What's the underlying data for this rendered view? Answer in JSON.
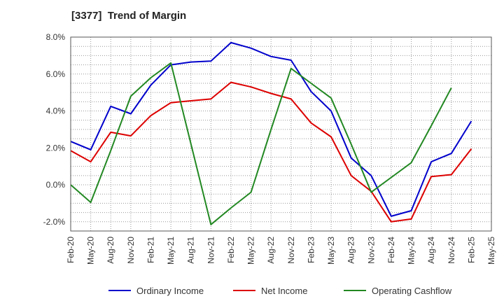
{
  "chart_data": {
    "type": "line",
    "title": "[3377]  Trend of Margin",
    "x": [
      "Feb-20",
      "May-20",
      "Aug-20",
      "Nov-20",
      "Feb-21",
      "May-21",
      "Aug-21",
      "Nov-21",
      "Feb-22",
      "May-22",
      "Aug-22",
      "Nov-22",
      "Feb-23",
      "May-23",
      "Aug-23",
      "Nov-23",
      "Feb-24",
      "May-24",
      "Aug-24",
      "Nov-24",
      "Feb-25",
      "May-25"
    ],
    "ylim": [
      -2.5,
      8.0
    ],
    "yticks": [
      -2.0,
      0.0,
      2.0,
      4.0,
      6.0,
      8.0
    ],
    "ytick_labels": [
      "-2.0%",
      "0.0%",
      "2.0%",
      "4.0%",
      "6.0%",
      "8.0%"
    ],
    "grid": true,
    "legend_position": "bottom",
    "series": [
      {
        "name": "Ordinary Income",
        "color": "#0000cc",
        "values": [
          2.35,
          1.9,
          4.25,
          3.85,
          5.4,
          6.5,
          6.65,
          6.7,
          7.7,
          7.4,
          6.95,
          6.75,
          5.05,
          4.0,
          1.45,
          0.5,
          -1.7,
          -1.4,
          1.25,
          1.7,
          3.45,
          null
        ]
      },
      {
        "name": "Net Income",
        "color": "#dd0000",
        "values": [
          1.85,
          1.25,
          2.85,
          2.65,
          3.75,
          4.45,
          4.55,
          4.65,
          5.55,
          5.3,
          4.95,
          4.65,
          3.35,
          2.6,
          0.5,
          -0.35,
          -2.0,
          -1.85,
          0.45,
          0.55,
          1.95,
          null
        ]
      },
      {
        "name": "Operating Cashflow",
        "color": "#228822",
        "values": [
          0.0,
          -0.95,
          1.85,
          4.8,
          5.8,
          6.6,
          null,
          -2.15,
          -1.25,
          -0.4,
          3.0,
          6.3,
          5.5,
          4.7,
          2.2,
          -0.4,
          0.4,
          1.2,
          3.2,
          5.25,
          null,
          null
        ]
      }
    ]
  }
}
